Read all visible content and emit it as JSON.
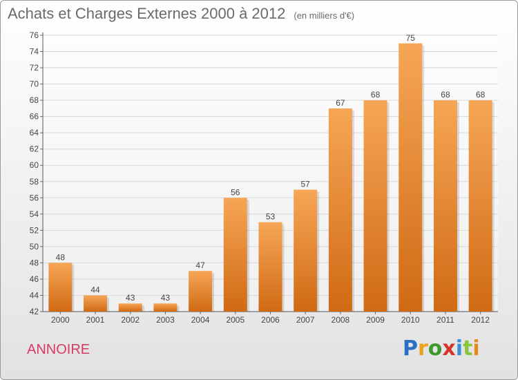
{
  "header": {
    "title": "Achats et Charges Externes 2000 à 2012",
    "subtitle": "(en milliers d'€)"
  },
  "footer": {
    "commune": "ANNOIRE",
    "logo": "Proxiti"
  },
  "colors": {
    "bar_top": "#f6a656",
    "bar_bottom": "#d06a14",
    "commune": "#d63a63",
    "logo_letters": [
      "#2a6fc4",
      "#e8a31a",
      "#3c9a2c",
      "#d7332a",
      "#3a8fd6",
      "#8bc43d",
      "#e58a1f"
    ]
  },
  "chart_data": {
    "type": "bar",
    "title": "Achats et Charges Externes 2000 à 2012",
    "subtitle": "(en milliers d'€)",
    "xlabel": "",
    "ylabel": "",
    "categories": [
      "2000",
      "2001",
      "2002",
      "2003",
      "2004",
      "2005",
      "2006",
      "2007",
      "2008",
      "2009",
      "2010",
      "2011",
      "2012"
    ],
    "values": [
      48,
      44,
      43,
      43,
      47,
      56,
      53,
      57,
      67,
      68,
      75,
      68,
      68
    ],
    "ylim": [
      42,
      76
    ],
    "yticks": [
      42,
      44,
      46,
      48,
      50,
      52,
      54,
      56,
      58,
      60,
      62,
      64,
      66,
      68,
      70,
      72,
      74,
      76
    ],
    "grid": true,
    "legend": "none"
  }
}
